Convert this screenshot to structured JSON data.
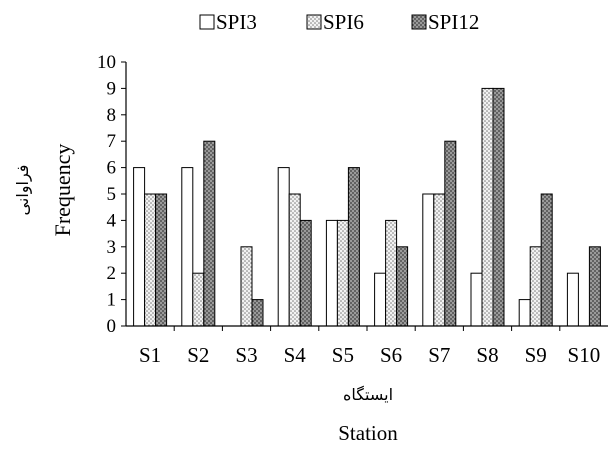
{
  "chart_data": {
    "type": "bar",
    "categories": [
      "S1",
      "S2",
      "S3",
      "S4",
      "S5",
      "S6",
      "S7",
      "S8",
      "S9",
      "S10"
    ],
    "series": [
      {
        "name": "SPI3",
        "values": [
          6,
          6,
          0,
          6,
          4,
          2,
          5,
          2,
          1,
          2
        ],
        "pattern": "white"
      },
      {
        "name": "SPI6",
        "values": [
          5,
          2,
          3,
          5,
          4,
          4,
          5,
          9,
          3,
          0
        ],
        "pattern": "light-dots"
      },
      {
        "name": "SPI12",
        "values": [
          5,
          7,
          1,
          4,
          6,
          3,
          7,
          9,
          5,
          3
        ],
        "pattern": "dark-dots"
      }
    ],
    "ylabel": "Frequency",
    "ylabel_farsi": "فراوانی",
    "xlabel": "Station",
    "xlabel_farsi": "ایستگاه",
    "ylim": [
      0,
      10
    ],
    "yticks": [
      0,
      1,
      2,
      3,
      4,
      5,
      6,
      7,
      8,
      9,
      10
    ],
    "grid": false,
    "legend_position": "top"
  }
}
